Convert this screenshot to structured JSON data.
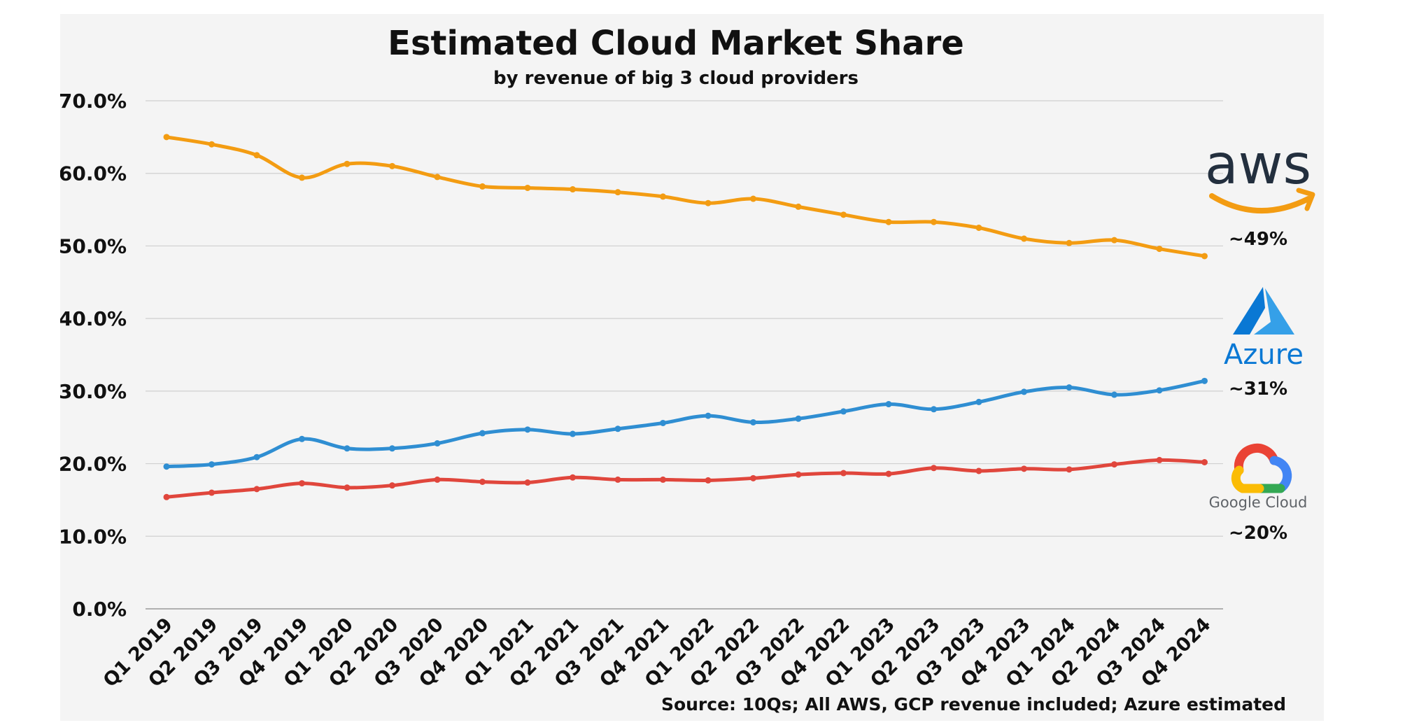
{
  "chart_data": {
    "type": "line",
    "title": "Estimated Cloud Market Share",
    "subtitle": "by revenue of big 3 cloud providers",
    "source": "Source: 10Qs; All AWS, GCP revenue included; Azure estimated",
    "ylim": [
      0,
      70
    ],
    "yticks": [
      "0.0%",
      "10.0%",
      "20.0%",
      "30.0%",
      "40.0%",
      "50.0%",
      "60.0%",
      "70.0%"
    ],
    "grid": true,
    "categories": [
      "Q1 2019",
      "Q2 2019",
      "Q3 2019",
      "Q4 2019",
      "Q1 2020",
      "Q2 2020",
      "Q3 2020",
      "Q4 2020",
      "Q1 2021",
      "Q2 2021",
      "Q3 2021",
      "Q4 2021",
      "Q1 2022",
      "Q2 2022",
      "Q3 2022",
      "Q4 2022",
      "Q1 2023",
      "Q2 2023",
      "Q3 2023",
      "Q4 2023",
      "Q1 2024",
      "Q2 2024",
      "Q3 2024",
      "Q4 2024"
    ],
    "series": [
      {
        "key": "aws",
        "color": "#f39c12",
        "values": [
          65.0,
          64.0,
          62.5,
          59.4,
          61.3,
          61.0,
          59.5,
          58.2,
          58.0,
          57.8,
          57.4,
          56.8,
          55.9,
          56.5,
          55.4,
          54.3,
          53.3,
          53.3,
          52.5,
          51.0,
          50.4,
          50.8,
          49.6,
          48.6
        ],
        "end_label": "~49%",
        "logo_text": "aws",
        "logo_icon": "amazon-smile-arrow-icon"
      },
      {
        "key": "azure",
        "color": "#2f8ed2",
        "values": [
          19.6,
          19.9,
          20.9,
          23.4,
          22.1,
          22.1,
          22.8,
          24.2,
          24.7,
          24.1,
          24.8,
          25.6,
          26.6,
          25.7,
          26.2,
          27.2,
          28.2,
          27.5,
          28.5,
          29.9,
          30.5,
          29.5,
          30.1,
          31.4
        ],
        "end_label": "~31%",
        "logo_text": "Azure",
        "logo_icon": "azure-a-icon"
      },
      {
        "key": "gcp",
        "color": "#e0463c",
        "values": [
          15.4,
          16.0,
          16.5,
          17.3,
          16.7,
          17.0,
          17.8,
          17.5,
          17.4,
          18.1,
          17.8,
          17.8,
          17.7,
          18.0,
          18.5,
          18.7,
          18.6,
          19.4,
          19.0,
          19.3,
          19.2,
          19.9,
          20.5,
          20.2
        ],
        "end_label": "~20%",
        "logo_text": "Google Cloud",
        "logo_icon": "google-cloud-icon"
      }
    ]
  }
}
